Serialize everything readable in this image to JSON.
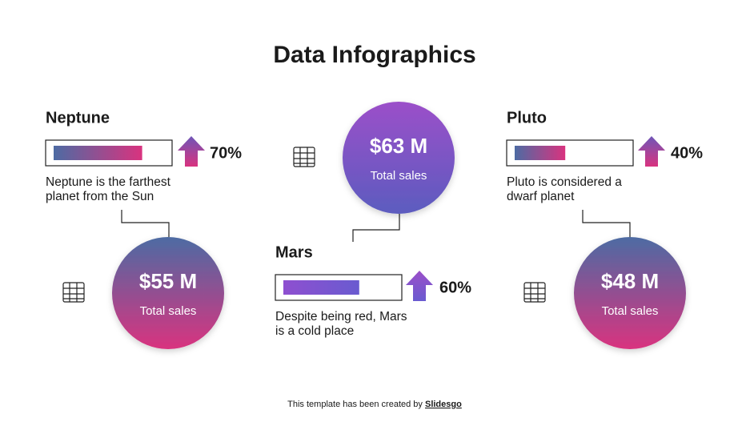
{
  "title": "Data Infographics",
  "items": [
    {
      "name": "Neptune",
      "percent": {
        "value": 70,
        "label": "70%"
      },
      "description": [
        "Neptune is the farthest",
        "planet from the Sun"
      ],
      "amount": "$55 M",
      "amount_caption": "Total sales"
    },
    {
      "name": "Mars",
      "percent": {
        "value": 60,
        "label": "60%"
      },
      "description": [
        "Despite being red, Mars",
        "is a cold place"
      ],
      "amount": "$63 M",
      "amount_caption": "Total sales"
    },
    {
      "name": "Pluto",
      "percent": {
        "value": 40,
        "label": "40%"
      },
      "description": [
        "Pluto is considered a",
        "dwarf planet"
      ],
      "amount": "$48 M",
      "amount_caption": "Total sales"
    }
  ],
  "footer": {
    "text": "This template has been created by",
    "link": "Slidesgo"
  }
}
